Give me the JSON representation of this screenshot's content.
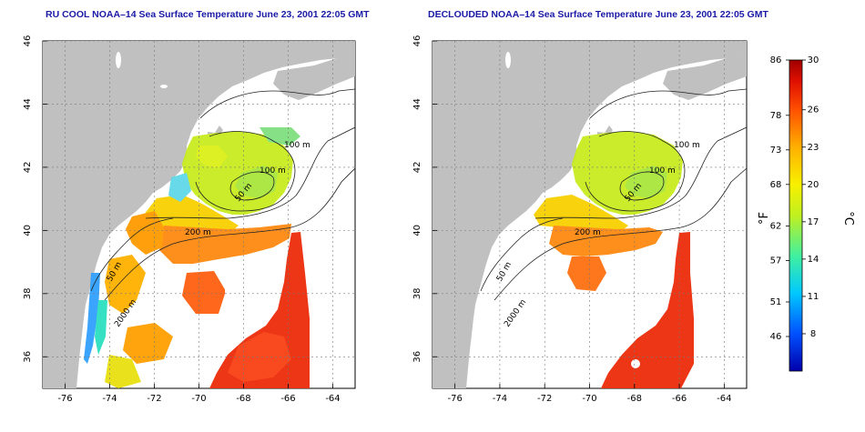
{
  "panels": [
    {
      "title": "RU COOL NOAA–14 Sea Surface Temperature June 23, 2001 22:05 GMT",
      "contour_labels": [
        "100 m",
        "100 m",
        "50 m",
        "200 m",
        "50 m",
        "2000 m"
      ]
    },
    {
      "title": "DECLOUDED NOAA–14 Sea Surface Temperature June 23, 2001 22:05 GMT",
      "contour_labels": [
        "100 m",
        "100 m",
        "50 m",
        "200 m",
        "50 m",
        "2000 m"
      ]
    }
  ],
  "axes": {
    "lon_ticks": [
      "-76",
      "-74",
      "-72",
      "-70",
      "-68",
      "-66",
      "-64"
    ],
    "lat_ticks": [
      "36",
      "38",
      "40",
      "42",
      "44",
      "46"
    ]
  },
  "colorbar": {
    "f_label": "°F",
    "c_label": "°C",
    "f_ticks": [
      "86",
      "78",
      "73",
      "68",
      "62",
      "57",
      "51",
      "46"
    ],
    "c_ticks": [
      "30",
      "26",
      "23",
      "20",
      "17",
      "14",
      "11",
      "8"
    ],
    "colors": [
      "#0000aa",
      "#0050ff",
      "#00c8ff",
      "#40f0a0",
      "#c0f020",
      "#f8f000",
      "#ffb000",
      "#ff5000",
      "#e01000",
      "#a00000"
    ]
  },
  "colors": {
    "land": "#c0c0c0",
    "ocean": "#ffffff",
    "title": "#1a1aa6",
    "contour": "#222222"
  }
}
